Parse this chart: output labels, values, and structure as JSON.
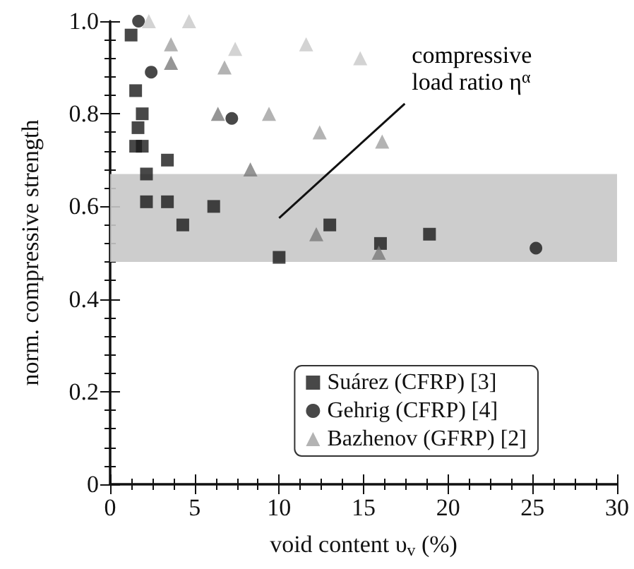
{
  "chart_data": {
    "type": "scatter",
    "xlabel": "void content υ$_{v}$ (%)",
    "ylabel": "norm. compressive strength",
    "xlim": [
      0,
      30
    ],
    "xticks": [
      0,
      5,
      10,
      15,
      20,
      25,
      30
    ],
    "ylim": [
      0,
      1
    ],
    "yticks": [
      0,
      0.2,
      0.4,
      0.6,
      0.8,
      {
        "value": 1,
        "label": "1.0"
      }
    ],
    "grid": false,
    "legend": "bottom right",
    "series": [
      {
        "name": "Suárez (CFRP) [3]",
        "color": "#1a1a1a",
        "marker": "square",
        "x": [
          1.24,
          1.51,
          1.9,
          1.65,
          1.51,
          1.9,
          3.39,
          2.15,
          2.15,
          3.39,
          6.13,
          4.3,
          10.0,
          13.0,
          16.0,
          18.9
        ],
        "values": [
          0.97,
          0.85,
          0.8,
          0.77,
          0.73,
          0.73,
          0.7,
          0.67,
          0.61,
          0.61,
          0.6,
          0.56,
          0.49,
          0.56,
          0.52,
          0.54
        ]
      },
      {
        "name": "Gehrig (CFRP) [4]",
        "color": "#1a1a1a",
        "marker": "circle",
        "x": [
          1.68,
          2.43,
          7.2,
          25.2
        ],
        "values": [
          1.0,
          0.89,
          0.79,
          0.51
        ]
      },
      {
        "name": "Bazhenov (GFRP) [2]",
        "color": "#a0a0a0",
        "marker": "triangle",
        "x": [
          2.29,
          4.67,
          3.6,
          7.4,
          11.6,
          3.6,
          6.77,
          6.38,
          9.4,
          12.4,
          8.3,
          12.2,
          14.8,
          16.1,
          15.9
        ],
        "values": [
          1.0,
          1.0,
          0.95,
          0.94,
          0.95,
          0.91,
          0.9,
          0.8,
          0.8,
          0.76,
          0.68,
          0.54,
          0.92,
          0.74,
          0.5
        ],
        "colors": [
          "#c8c8c8",
          "#c8c8c8",
          "#a0a0a0",
          "#c8c8c8",
          "#c8c8c8",
          "#7a7a7a",
          "#a0a0a0",
          "#7a7a7a",
          "#a0a0a0",
          "#a0a0a0",
          "#7a7a7a",
          "#7a7a7a",
          "#c8c8c8",
          "#a0a0a0",
          "#7a7a7a"
        ]
      }
    ],
    "bands": [
      {
        "axis": "y",
        "from": 0.48,
        "to": 0.67,
        "color": "#c8c8c8",
        "label": "compressive load ratio η$^{α}$"
      }
    ]
  }
}
